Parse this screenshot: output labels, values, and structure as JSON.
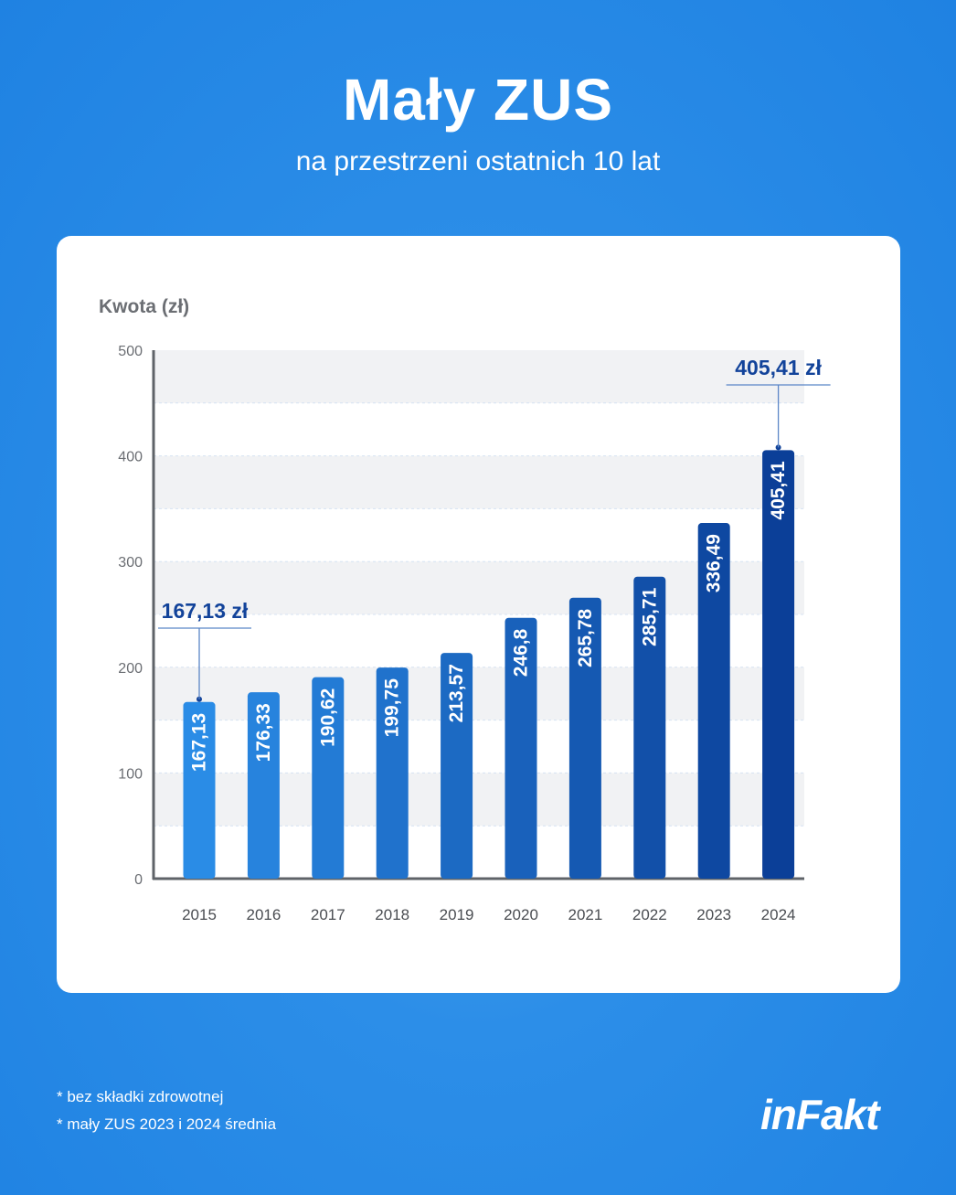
{
  "header": {
    "title": "Mały ZUS",
    "subtitle": "na przestrzeni ostatnich 10 lat"
  },
  "colors": {
    "background": "#1f82e2",
    "bar_start": "#2a8ce6",
    "bar_end": "#0b3f98",
    "annotation": "#12439a",
    "band": "#f1f2f4"
  },
  "chart_data": {
    "type": "bar",
    "ylabel": "Kwota (zł)",
    "xlabel": "",
    "ylim": [
      0,
      500
    ],
    "yticks": [
      0,
      100,
      200,
      300,
      400,
      500
    ],
    "categories": [
      "2015",
      "2016",
      "2017",
      "2018",
      "2019",
      "2020",
      "2021",
      "2022",
      "2023",
      "2024"
    ],
    "values": [
      167.13,
      176.33,
      190.62,
      199.75,
      213.57,
      246.8,
      265.78,
      285.71,
      336.49,
      405.41
    ],
    "data_labels": [
      "167,13",
      "176,33",
      "190,62",
      "199,75",
      "213,57",
      "246,8",
      "265,78",
      "285,71",
      "336,49",
      "405,41"
    ],
    "annotations": [
      {
        "category": "2015",
        "text": "167,13 zł"
      },
      {
        "category": "2024",
        "text": "405,41 zł"
      }
    ]
  },
  "footnotes": [
    "*  bez składki zdrowotnej",
    "*  mały ZUS 2023 i 2024 średnia"
  ],
  "logo": {
    "text": "inFakt"
  }
}
